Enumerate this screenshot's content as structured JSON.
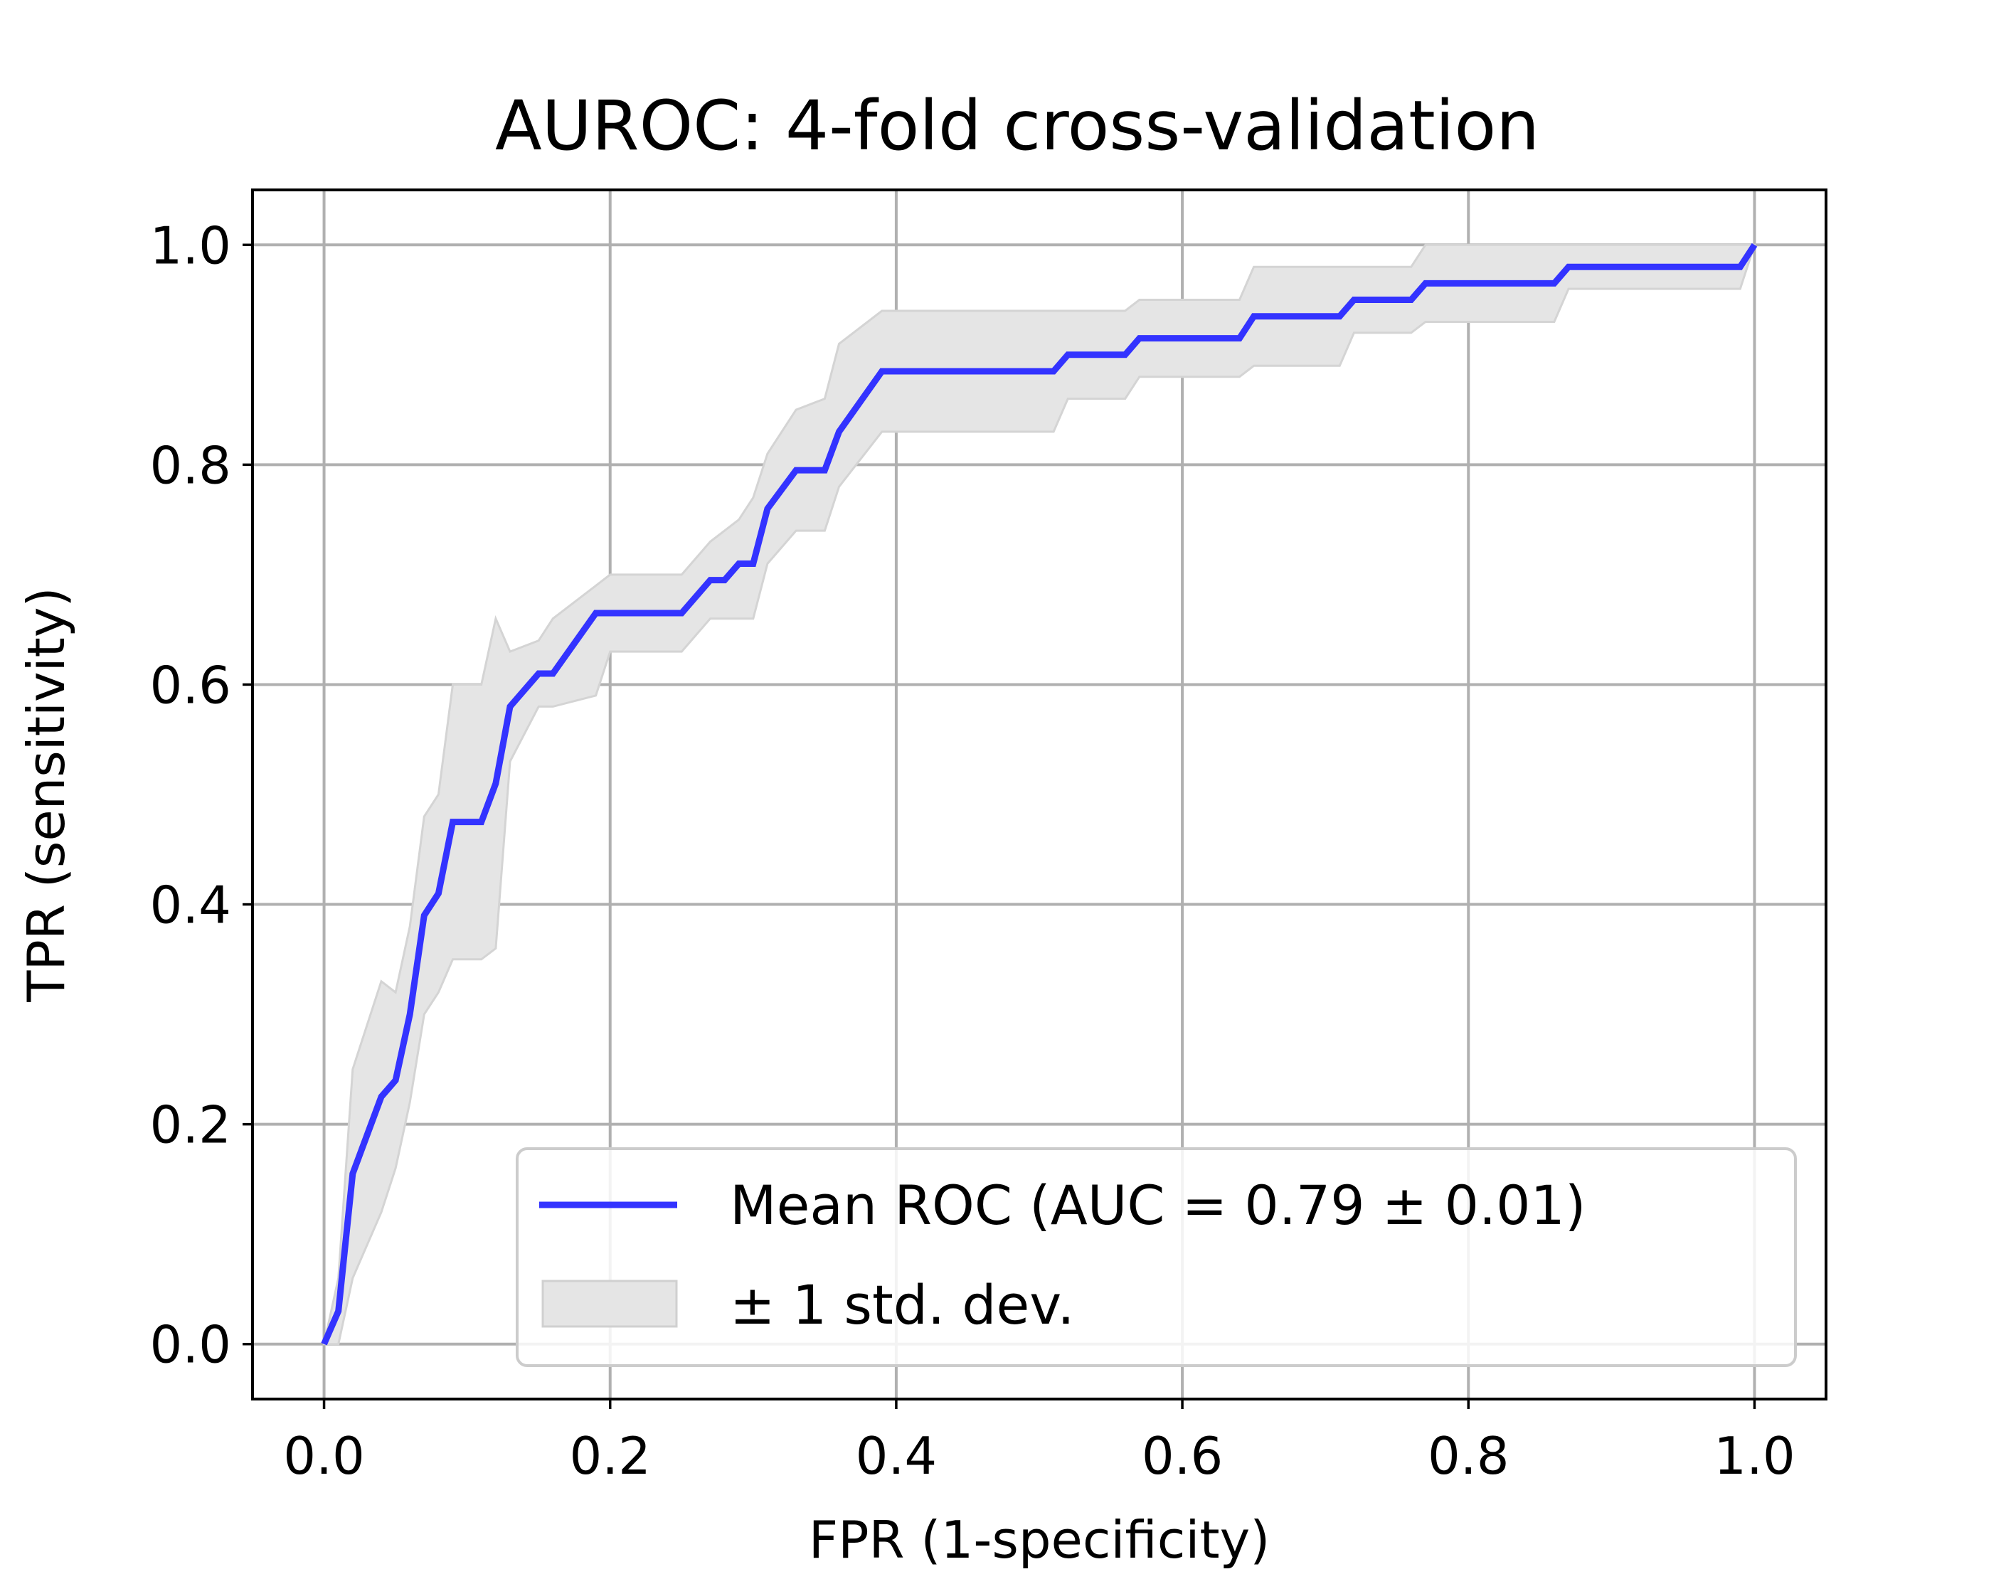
{
  "chart_data": {
    "type": "line",
    "title": "AUROC: 4-fold cross-validation",
    "xlabel": "FPR (1-specificity)",
    "ylabel": "TPR (sensitivity)",
    "xlim": [
      -0.05,
      1.05
    ],
    "ylim": [
      -0.05,
      1.05
    ],
    "xticks": [
      0.0,
      0.2,
      0.4,
      0.6,
      0.8,
      1.0
    ],
    "yticks": [
      0.0,
      0.2,
      0.4,
      0.6,
      0.8,
      1.0
    ],
    "xtick_labels": [
      "0.0",
      "0.2",
      "0.4",
      "0.6",
      "0.8",
      "1.0"
    ],
    "ytick_labels": [
      "0.0",
      "0.2",
      "0.4",
      "0.6",
      "0.8",
      "1.0"
    ],
    "grid": true,
    "legend_position": "lower right",
    "series": [
      {
        "name": "Mean ROC (AUC = 0.79 ± 0.01)",
        "color": "#3333ff",
        "x": [
          0.0,
          0.01,
          0.02,
          0.04,
          0.05,
          0.06,
          0.07,
          0.08,
          0.09,
          0.11,
          0.12,
          0.13,
          0.15,
          0.16,
          0.19,
          0.2,
          0.25,
          0.27,
          0.28,
          0.29,
          0.3,
          0.31,
          0.33,
          0.35,
          0.36,
          0.39,
          0.51,
          0.52,
          0.56,
          0.57,
          0.64,
          0.65,
          0.71,
          0.72,
          0.76,
          0.77,
          0.86,
          0.87,
          0.99,
          1.0
        ],
        "y": [
          0.0,
          0.03,
          0.155,
          0.225,
          0.24,
          0.3,
          0.39,
          0.41,
          0.475,
          0.475,
          0.51,
          0.58,
          0.61,
          0.61,
          0.665,
          0.665,
          0.665,
          0.695,
          0.695,
          0.71,
          0.71,
          0.76,
          0.795,
          0.795,
          0.83,
          0.885,
          0.885,
          0.9,
          0.9,
          0.915,
          0.915,
          0.935,
          0.935,
          0.95,
          0.95,
          0.965,
          0.965,
          0.98,
          0.98,
          1.0
        ]
      }
    ],
    "band": {
      "name": "± 1 std. dev.",
      "color": "#e5e5e5",
      "x": [
        0.0,
        0.01,
        0.02,
        0.04,
        0.05,
        0.06,
        0.07,
        0.08,
        0.09,
        0.11,
        0.12,
        0.13,
        0.15,
        0.16,
        0.19,
        0.2,
        0.25,
        0.27,
        0.28,
        0.29,
        0.3,
        0.31,
        0.33,
        0.35,
        0.36,
        0.39,
        0.51,
        0.52,
        0.56,
        0.57,
        0.64,
        0.65,
        0.71,
        0.72,
        0.76,
        0.77,
        0.86,
        0.87,
        0.99,
        1.0
      ],
      "upper": [
        0.0,
        0.06,
        0.25,
        0.33,
        0.32,
        0.38,
        0.48,
        0.5,
        0.6,
        0.6,
        0.66,
        0.63,
        0.64,
        0.66,
        0.69,
        0.7,
        0.7,
        0.73,
        0.74,
        0.75,
        0.77,
        0.81,
        0.85,
        0.86,
        0.91,
        0.94,
        0.94,
        0.94,
        0.94,
        0.95,
        0.95,
        0.98,
        0.98,
        0.98,
        0.98,
        1.0,
        1.0,
        1.0,
        1.0,
        1.0
      ],
      "lower": [
        0.0,
        0.0,
        0.06,
        0.12,
        0.16,
        0.22,
        0.3,
        0.32,
        0.35,
        0.35,
        0.36,
        0.53,
        0.58,
        0.58,
        0.59,
        0.63,
        0.63,
        0.66,
        0.66,
        0.66,
        0.66,
        0.71,
        0.74,
        0.74,
        0.78,
        0.83,
        0.83,
        0.86,
        0.86,
        0.88,
        0.88,
        0.89,
        0.89,
        0.92,
        0.92,
        0.93,
        0.93,
        0.96,
        0.96,
        1.0
      ]
    }
  }
}
